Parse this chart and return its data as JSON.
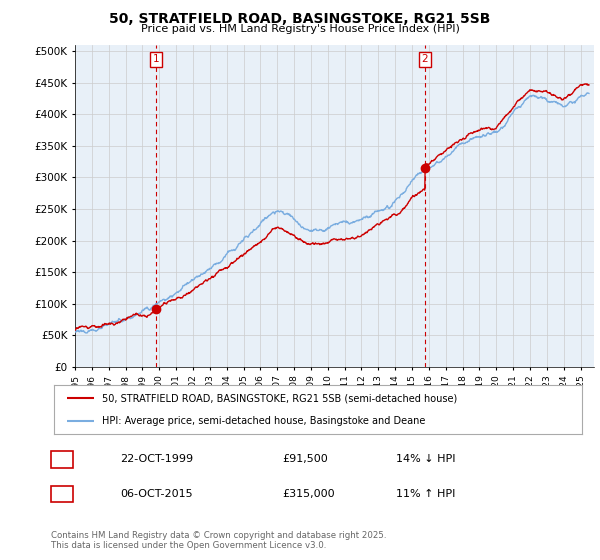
{
  "title": "50, STRATFIELD ROAD, BASINGSTOKE, RG21 5SB",
  "subtitle": "Price paid vs. HM Land Registry's House Price Index (HPI)",
  "ylim": [
    0,
    510000
  ],
  "yticks": [
    0,
    50000,
    100000,
    150000,
    200000,
    250000,
    300000,
    350000,
    400000,
    450000,
    500000
  ],
  "ytick_labels": [
    "£0",
    "£50K",
    "£100K",
    "£150K",
    "£200K",
    "£250K",
    "£300K",
    "£350K",
    "£400K",
    "£450K",
    "£500K"
  ],
  "price_color": "#cc0000",
  "hpi_color": "#7aade0",
  "chart_bg": "#e8f0f8",
  "marker1_date": 1999.81,
  "marker2_date": 2015.76,
  "marker1_price": 91500,
  "marker2_price": 315000,
  "legend_entry1": "50, STRATFIELD ROAD, BASINGSTOKE, RG21 5SB (semi-detached house)",
  "legend_entry2": "HPI: Average price, semi-detached house, Basingstoke and Deane",
  "note1_num": "1",
  "note1_date": "22-OCT-1999",
  "note1_price": "£91,500",
  "note1_hpi": "14% ↓ HPI",
  "note2_num": "2",
  "note2_date": "06-OCT-2015",
  "note2_price": "£315,000",
  "note2_hpi": "11% ↑ HPI",
  "footer": "Contains HM Land Registry data © Crown copyright and database right 2025.\nThis data is licensed under the Open Government Licence v3.0.",
  "background_color": "#ffffff",
  "grid_color": "#cccccc"
}
